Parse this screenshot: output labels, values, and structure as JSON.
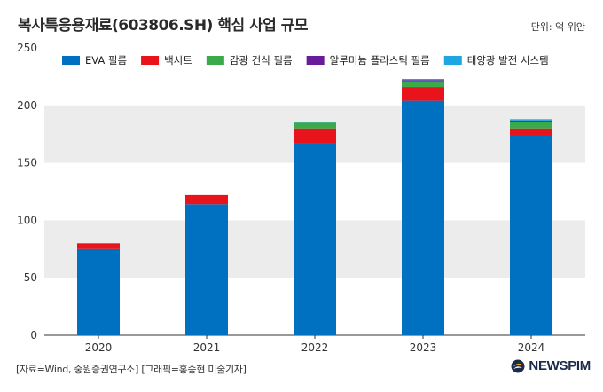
{
  "header": {
    "title": "복사특응용재료(603806.SH) 핵심 사업 규모",
    "unit": "단위: 억 위안"
  },
  "footer": {
    "source": "[자료=Wind, 중원증권연구소] [그래픽=홍종현 미술기자]",
    "brand": "NEWSPIM"
  },
  "colors": {
    "background_band": "#ececec",
    "axis": "#333333"
  },
  "chart_data": {
    "type": "bar",
    "stacked": true,
    "title": "복사특응용재료(603806.SH) 핵심 사업 규모",
    "xlabel": "",
    "ylabel": "",
    "categories": [
      "2020",
      "2021",
      "2022",
      "2023",
      "2024"
    ],
    "ylim": [
      0,
      250
    ],
    "yticks": [
      0,
      50,
      100,
      150,
      200,
      250
    ],
    "legend_position": "top-left",
    "series": [
      {
        "name": "EVA 필름",
        "color": "#0070c0",
        "values": [
          75,
          114,
          167,
          204,
          174
        ]
      },
      {
        "name": "백시트",
        "color": "#e8131b",
        "values": [
          5,
          8,
          13,
          12,
          6
        ]
      },
      {
        "name": "감광 건식 필름",
        "color": "#3aaa4a",
        "values": [
          0,
          0,
          5,
          5,
          6
        ]
      },
      {
        "name": "알루미늄 플라스틱 필름",
        "color": "#6a1b9a",
        "values": [
          0,
          0,
          0,
          1,
          0.8
        ]
      },
      {
        "name": "태양광 발전 시스템",
        "color": "#1ea6e0",
        "values": [
          0,
          0,
          0.5,
          1,
          1.2
        ]
      }
    ]
  }
}
